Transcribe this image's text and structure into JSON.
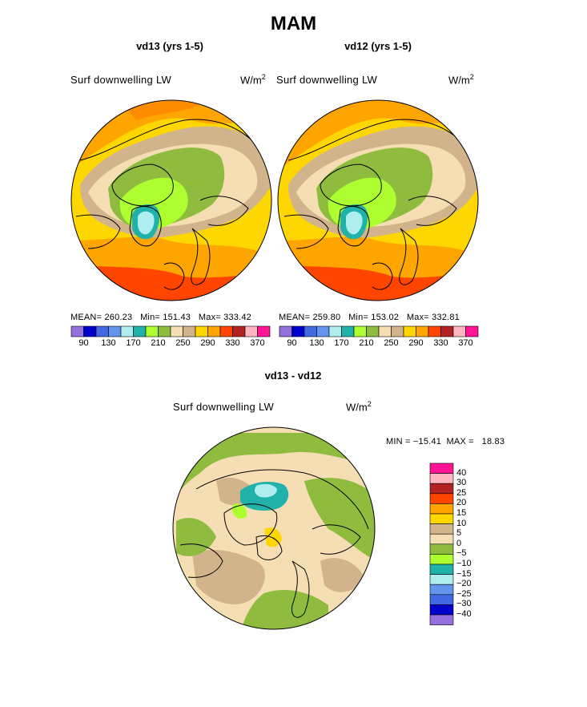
{
  "title": "MAM",
  "panels": [
    {
      "subtitle": "vd13 (yrs 1-5)",
      "field_label": "Surf downwelling LW",
      "units": "W/m",
      "units_sup": "2",
      "stats": "MEAN= 260.23   Min= 151.43   Max= 333.42"
    },
    {
      "subtitle": "vd12 (yrs 1-5)",
      "field_label": "Surf downwelling LW",
      "units": "W/m",
      "units_sup": "2",
      "stats": "MEAN= 259.80   Min= 153.02   Max= 332.81"
    }
  ],
  "diff": {
    "subtitle": "vd13 - vd12",
    "field_label": "Surf downwelling LW",
    "units": "W/m",
    "units_sup": "2",
    "stats": "MIN = −15.41  MAX =   18.83"
  },
  "colorbar_h": {
    "colors": [
      "#9370db",
      "#0000cd",
      "#4169e1",
      "#6495ed",
      "#afeeee",
      "#20b2aa",
      "#adff2f",
      "#8fbc3f",
      "#f5deb3",
      "#d2b48c",
      "#ffd700",
      "#ffa500",
      "#ff4500",
      "#b22222",
      "#ffb6c1",
      "#ff1493"
    ],
    "labels": [
      "90",
      "130",
      "170",
      "210",
      "250",
      "290",
      "330",
      "370"
    ]
  },
  "colorbar_v": {
    "colors": [
      "#ff1493",
      "#ffb6c1",
      "#b22222",
      "#ff4500",
      "#ffa500",
      "#ffd700",
      "#d2b48c",
      "#f5deb3",
      "#8fbc3f",
      "#adff2f",
      "#20b2aa",
      "#afeeee",
      "#6495ed",
      "#4169e1",
      "#0000cd",
      "#9370db"
    ],
    "labels": [
      "40",
      "30",
      "25",
      "20",
      "15",
      "10",
      "5",
      "0",
      "−5",
      "−10",
      "−15",
      "−20",
      "−25",
      "−30",
      "−40"
    ]
  }
}
